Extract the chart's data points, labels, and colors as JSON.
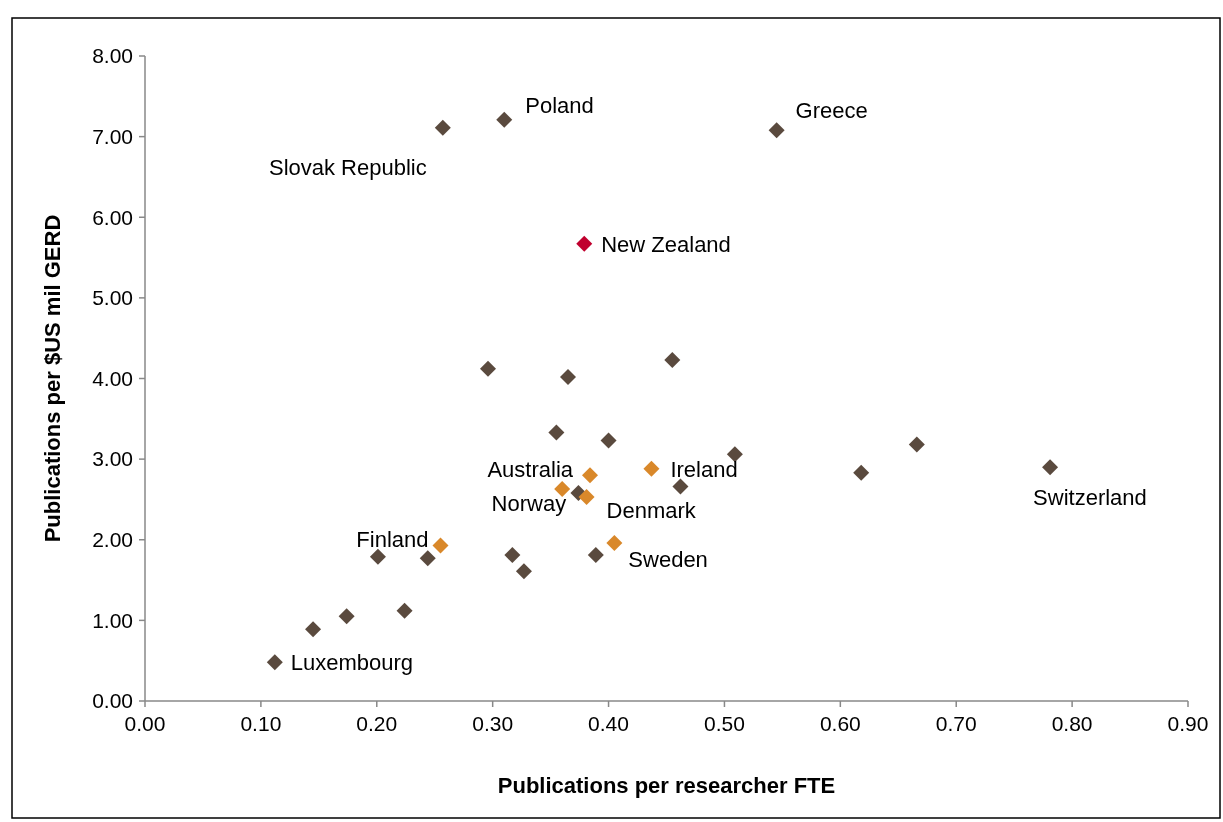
{
  "chart_data": {
    "type": "scatter",
    "xlabel": "Publications per researcher FTE",
    "ylabel": "Publications per $US mil GERD",
    "xlim": [
      0,
      0.9
    ],
    "ylim": [
      0,
      8
    ],
    "xticks": [
      {
        "value": 0,
        "label": "0.00"
      },
      {
        "value": 0.1,
        "label": "0.10"
      },
      {
        "value": 0.2,
        "label": "0.20"
      },
      {
        "value": 0.3,
        "label": "0.30"
      },
      {
        "value": 0.4,
        "label": "0.40"
      },
      {
        "value": 0.5,
        "label": "0.50"
      },
      {
        "value": 0.6,
        "label": "0.60"
      },
      {
        "value": 0.7,
        "label": "0.70"
      },
      {
        "value": 0.8,
        "label": "0.80"
      },
      {
        "value": 0.9,
        "label": "0.90"
      }
    ],
    "yticks": [
      {
        "value": 0,
        "label": "0.00"
      },
      {
        "value": 1,
        "label": "1.00"
      },
      {
        "value": 2,
        "label": "2.00"
      },
      {
        "value": 3,
        "label": "3.00"
      },
      {
        "value": 4,
        "label": "4.00"
      },
      {
        "value": 5,
        "label": "5.00"
      },
      {
        "value": 6,
        "label": "6.00"
      },
      {
        "value": 7,
        "label": "7.00"
      },
      {
        "value": 8,
        "label": "8.00"
      }
    ],
    "grid": false,
    "marker": "diamond",
    "series": [
      {
        "color": "#5a4a3e",
        "x": [
          0.257,
          0.31,
          0.545,
          0.296,
          0.365,
          0.455,
          0.355,
          0.4,
          0.509,
          0.666,
          0.618,
          0.781,
          0.374,
          0.462,
          0.389,
          0.317,
          0.327,
          0.244,
          0.201,
          0.224,
          0.174,
          0.145,
          0.112
        ],
        "values": [
          7.11,
          7.21,
          7.08,
          4.12,
          4.02,
          4.23,
          3.33,
          3.23,
          3.06,
          3.18,
          2.83,
          2.9,
          2.58,
          2.66,
          1.81,
          1.81,
          1.61,
          1.77,
          1.79,
          1.12,
          1.05,
          0.89,
          0.48
        ]
      },
      {
        "color": "#d9882a",
        "x": [
          0.437,
          0.384,
          0.36,
          0.381,
          0.405,
          0.255
        ],
        "values": [
          2.88,
          2.8,
          2.63,
          2.53,
          1.96,
          1.93
        ]
      },
      {
        "color": "#c0002e",
        "x": [
          0.379
        ],
        "values": [
          5.67
        ]
      }
    ],
    "annotations": [
      {
        "text": "Slovak Republic",
        "x": 0.257,
        "y": 7.11
      },
      {
        "text": "Poland",
        "x": 0.31,
        "y": 7.21
      },
      {
        "text": "Greece",
        "x": 0.545,
        "y": 7.08
      },
      {
        "text": "New Zealand",
        "x": 0.379,
        "y": 5.67
      },
      {
        "text": "Australia",
        "x": 0.384,
        "y": 2.8
      },
      {
        "text": "Norway",
        "x": 0.36,
        "y": 2.63
      },
      {
        "text": "Denmark",
        "x": 0.381,
        "y": 2.53
      },
      {
        "text": "Ireland",
        "x": 0.437,
        "y": 2.88
      },
      {
        "text": "Switzerland",
        "x": 0.781,
        "y": 2.9
      },
      {
        "text": "Sweden",
        "x": 0.405,
        "y": 1.96
      },
      {
        "text": "Finland",
        "x": 0.255,
        "y": 1.93
      },
      {
        "text": "Luxembourg",
        "x": 0.112,
        "y": 0.48
      }
    ]
  }
}
